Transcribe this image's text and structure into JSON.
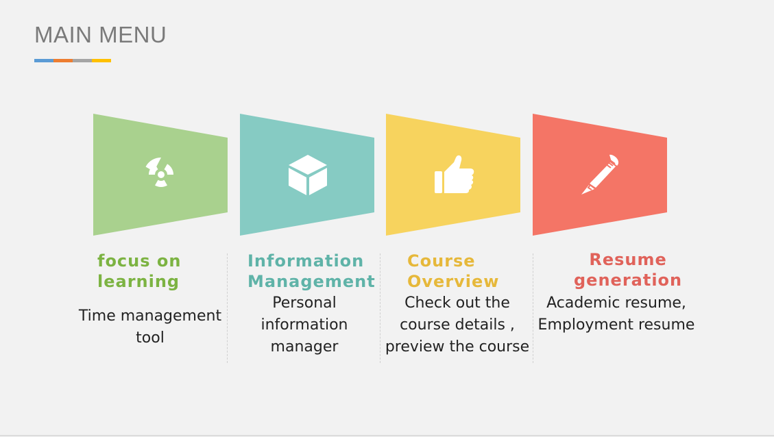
{
  "page": {
    "title": "MAIN MENU",
    "underline_colors": [
      "#5b9bd5",
      "#ed7d31",
      "#a5a5a5",
      "#ffc000"
    ]
  },
  "menu": [
    {
      "title_line1": "focus on",
      "title_line2": "learning",
      "description_lines": [
        "Time management",
        "tool"
      ],
      "icon": "radiation-target-icon",
      "color": "#a9d18e",
      "title_color": "#7cb342"
    },
    {
      "title_line1": "Information",
      "title_line2": "Management",
      "description_lines": [
        "Personal",
        "information",
        "manager"
      ],
      "icon": "cube-icon",
      "color": "#86cbc3",
      "title_color": "#5fb3a8"
    },
    {
      "title_line1": "Course",
      "title_line2": "Overview",
      "description_lines": [
        "Check out the",
        "course details ,",
        "preview the course"
      ],
      "icon": "thumbs-up-icon",
      "color": "#f7d35e",
      "title_color": "#e6b83a"
    },
    {
      "title_line1": "Resume",
      "title_line2": "generation",
      "description_lines": [
        "Academic resume,",
        "Employment resume"
      ],
      "icon": "pencil-icon",
      "color": "#f47566",
      "title_color": "#e0625a"
    }
  ]
}
